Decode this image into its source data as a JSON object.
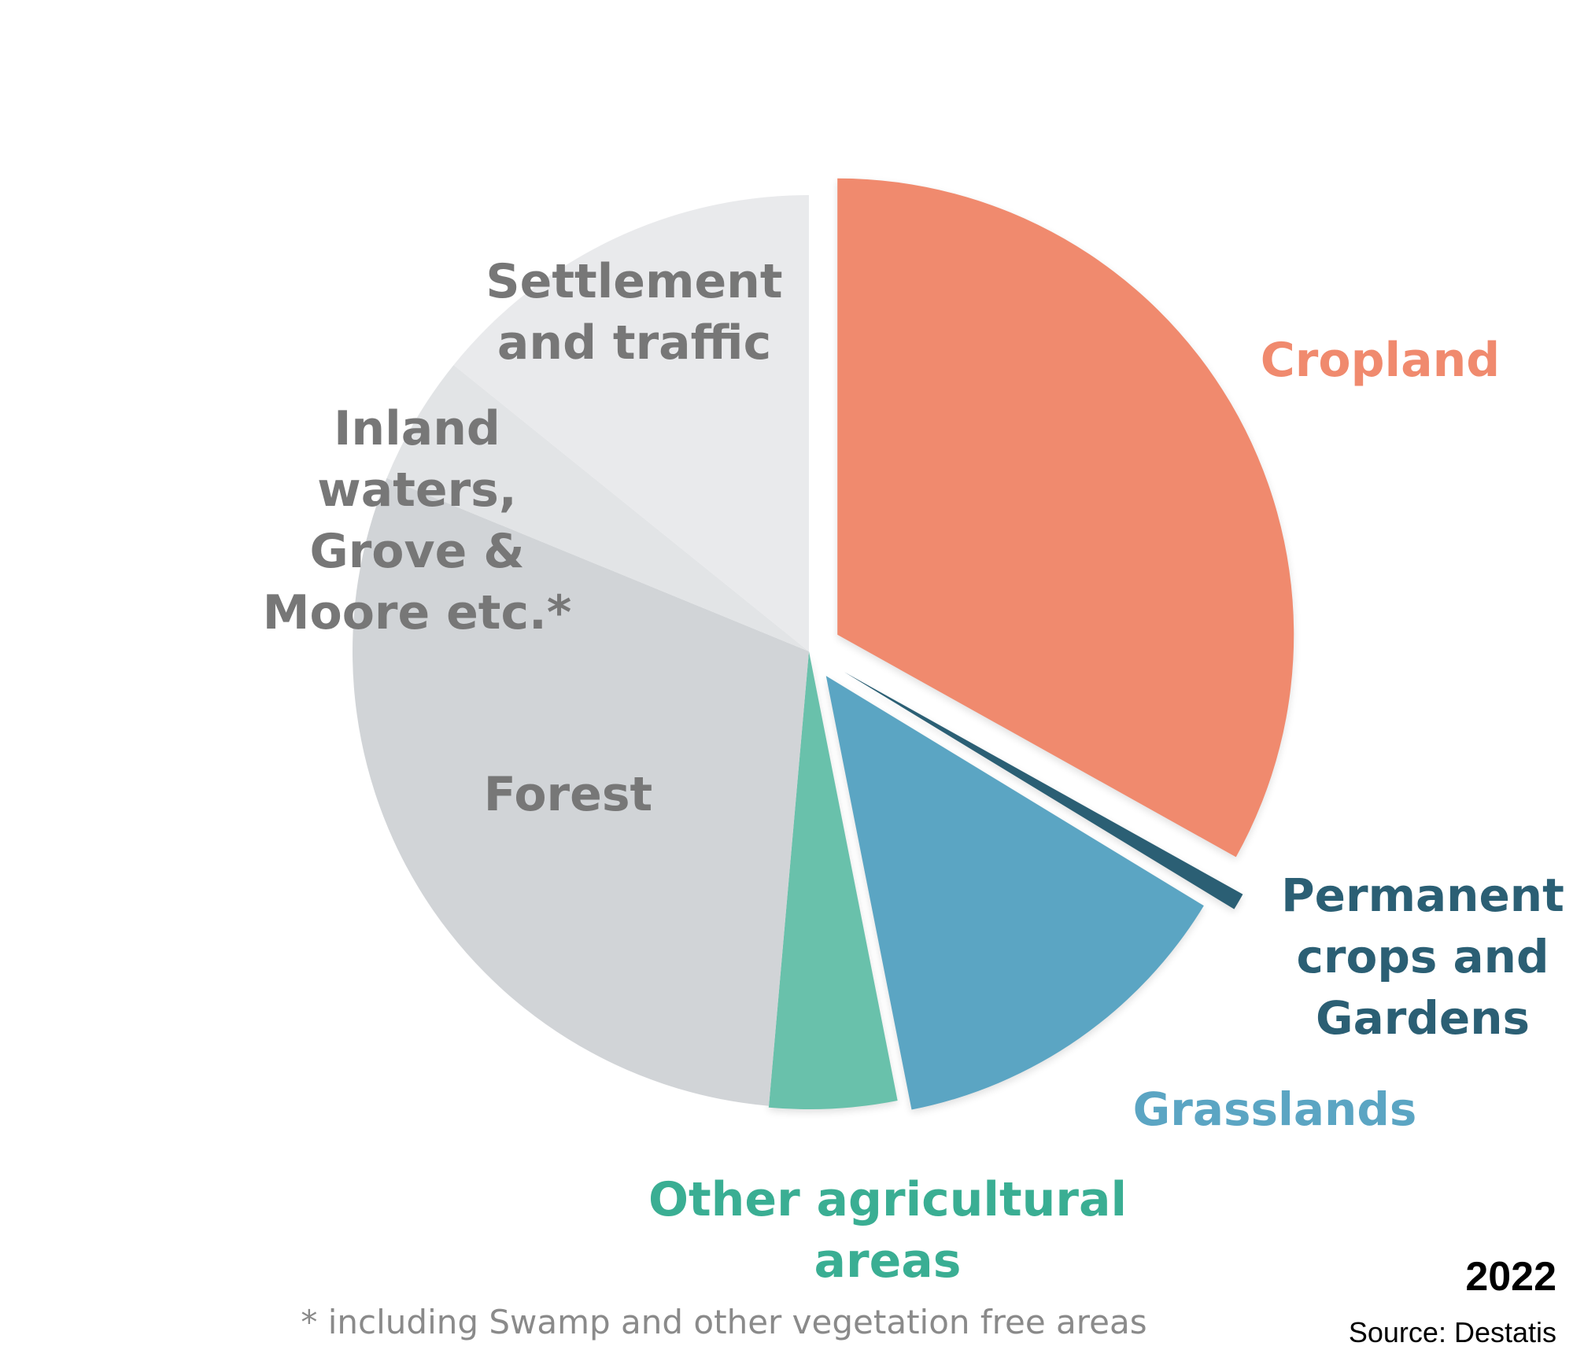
{
  "chart_data": {
    "type": "pie",
    "slices": [
      {
        "label": [
          "Cropland"
        ],
        "value": 33.1,
        "color": "#f08a6e",
        "label_color": "#f08a6e"
      },
      {
        "label": [
          "Permanent",
          "crops and",
          "Gardens"
        ],
        "value": 0.6,
        "color": "#2b5f74",
        "label_color": "#2b5f74"
      },
      {
        "label": [
          "Grasslands"
        ],
        "value": 13.2,
        "color": "#5ba5c3",
        "label_color": "#5ba5c3"
      },
      {
        "label": [
          "Other agricultural",
          "areas"
        ],
        "value": 4.5,
        "color": "#69c1ab",
        "label_color": "#3aae93"
      },
      {
        "label": [
          "Forest"
        ],
        "value": 29.8,
        "color": "#d1d4d7",
        "label_color": "#777777"
      },
      {
        "label": [
          "Inland",
          "waters,",
          "Grove &",
          "Moore etc.*"
        ],
        "value": 4.6,
        "color": "#e2e4e6",
        "label_color": "#777777"
      },
      {
        "label": [
          "Settlement",
          "and traffic"
        ],
        "value": 14.2,
        "color": "#e9eaec",
        "label_color": "#777777"
      }
    ],
    "footnote": "* including Swamp and other vegetation free areas",
    "year": "2022",
    "source": "Source: Destatis"
  }
}
